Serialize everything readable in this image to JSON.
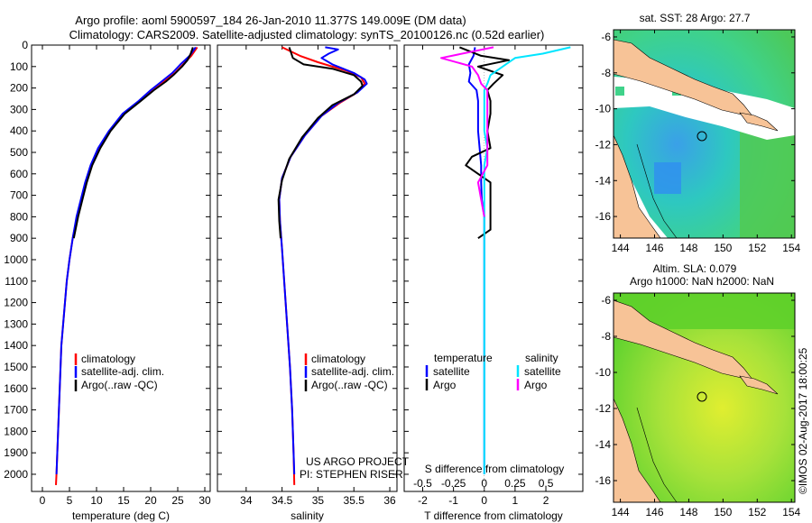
{
  "figure": {
    "title_line1": "Argo profile: aoml 5900597_184 26-Jan-2010 11.377S 149.009E (DM data)",
    "title_line2": "Climatology: CARS2009. Satellite-adjusted climatology: synTS_20100126.nc (0.52d earlier)",
    "project_line1": "US ARGO PROJECT",
    "project_line2": "PI: STEPHEN RISER",
    "credit": "©IMOS 02-Aug-2017 18:00:25",
    "colors": {
      "climatology": "#ff0000",
      "satellite": "#0000ff",
      "argo": "#000000",
      "salinity_satellite": "#00e5ff",
      "salinity_argo": "#ff00ff",
      "land": "#f7c397",
      "sst_map_water": "#2ecf9a",
      "sla_map_water": "#6fdc2a"
    }
  },
  "chart_data": [
    {
      "id": "temperature",
      "type": "line",
      "xlabel": "temperature (deg C)",
      "ylabel": "",
      "xlim": [
        -2,
        31
      ],
      "ylim": [
        2080,
        0
      ],
      "xticks": [
        0,
        5,
        10,
        15,
        20,
        25,
        30
      ],
      "xtick_labels": [
        "0",
        "5",
        "10",
        "15",
        "20",
        "25",
        "30"
      ],
      "yticks": [
        0,
        100,
        200,
        300,
        400,
        500,
        600,
        700,
        800,
        900,
        1000,
        1100,
        1200,
        1300,
        1400,
        1500,
        1600,
        1700,
        1800,
        1900,
        2000
      ],
      "ytick_labels": [
        "0",
        "100",
        "200",
        "300",
        "400",
        "500",
        "600",
        "700",
        "800",
        "900",
        "1000",
        "1100",
        "1200",
        "1300",
        "1400",
        "1500",
        "1600",
        "1700",
        "1800",
        "1900",
        "2000"
      ],
      "legend": [
        "climatology",
        "satellite-adj. clim.",
        "Argo(..raw -QC)"
      ],
      "series": [
        {
          "name": "climatology",
          "color": "#ff0000",
          "points": [
            [
              28.6,
              10
            ],
            [
              27.5,
              50
            ],
            [
              26,
              90
            ],
            [
              24.5,
              130
            ],
            [
              22.5,
              170
            ],
            [
              20.5,
              210
            ],
            [
              18,
              260
            ],
            [
              15,
              320
            ],
            [
              12.5,
              400
            ],
            [
              10.5,
              480
            ],
            [
              9,
              560
            ],
            [
              8,
              640
            ],
            [
              7.2,
              720
            ],
            [
              6.4,
              800
            ],
            [
              5.6,
              900
            ],
            [
              5,
              1000
            ],
            [
              4.5,
              1100
            ],
            [
              4,
              1250
            ],
            [
              3.5,
              1400
            ],
            [
              3.2,
              1600
            ],
            [
              2.9,
              1800
            ],
            [
              2.6,
              2000
            ],
            [
              2.5,
              2050
            ]
          ]
        },
        {
          "name": "satellite-adj. clim.",
          "color": "#0000ff",
          "points": [
            [
              28.3,
              10
            ],
            [
              27.2,
              50
            ],
            [
              25.5,
              90
            ],
            [
              24,
              130
            ],
            [
              22,
              170
            ],
            [
              20,
              210
            ],
            [
              17.8,
              260
            ],
            [
              14.8,
              320
            ],
            [
              12.3,
              400
            ],
            [
              10.3,
              480
            ],
            [
              8.9,
              560
            ],
            [
              7.9,
              640
            ],
            [
              7.1,
              720
            ],
            [
              6.3,
              800
            ],
            [
              5.6,
              900
            ],
            [
              5,
              1000
            ],
            [
              4.5,
              1100
            ],
            [
              4,
              1250
            ],
            [
              3.5,
              1400
            ],
            [
              3.2,
              1600
            ],
            [
              2.9,
              1800
            ],
            [
              2.6,
              2000
            ]
          ]
        },
        {
          "name": "Argo(..raw -QC)",
          "color": "#000000",
          "points": [
            [
              27.8,
              10
            ],
            [
              27.4,
              40
            ],
            [
              26.8,
              70
            ],
            [
              25.8,
              100
            ],
            [
              24.2,
              140
            ],
            [
              22.8,
              170
            ],
            [
              20.6,
              210
            ],
            [
              18.2,
              260
            ],
            [
              15.2,
              320
            ],
            [
              12.6,
              400
            ],
            [
              10.7,
              480
            ],
            [
              9.2,
              560
            ],
            [
              8.2,
              640
            ],
            [
              7.4,
              720
            ],
            [
              6.6,
              800
            ],
            [
              5.8,
              900
            ]
          ]
        }
      ]
    },
    {
      "id": "salinity",
      "type": "line",
      "xlabel": "salinity",
      "ylabel": "",
      "xlim": [
        33.6,
        36.1
      ],
      "ylim": [
        2080,
        0
      ],
      "xticks": [
        34,
        34.5,
        35,
        35.5,
        36
      ],
      "xtick_labels": [
        "34",
        "34.5",
        "35",
        "35.5",
        "36"
      ],
      "legend": [
        "climatology",
        "satellite-adj. clim.",
        "Argo(..raw -QC)"
      ],
      "series": [
        {
          "name": "climatology",
          "color": "#ff0000",
          "points": [
            [
              34.5,
              10
            ],
            [
              34.75,
              50
            ],
            [
              35,
              80
            ],
            [
              35.4,
              120
            ],
            [
              35.6,
              150
            ],
            [
              35.65,
              180
            ],
            [
              35.55,
              220
            ],
            [
              35.3,
              270
            ],
            [
              35.05,
              330
            ],
            [
              34.82,
              420
            ],
            [
              34.62,
              520
            ],
            [
              34.5,
              620
            ],
            [
              34.46,
              720
            ],
            [
              34.47,
              820
            ],
            [
              34.5,
              950
            ],
            [
              34.53,
              1100
            ],
            [
              34.57,
              1300
            ],
            [
              34.61,
              1500
            ],
            [
              34.64,
              1700
            ],
            [
              34.66,
              1900
            ],
            [
              34.67,
              2050
            ]
          ]
        },
        {
          "name": "satellite-adj. clim.",
          "color": "#0000ff",
          "points": [
            [
              35.1,
              10
            ],
            [
              35.28,
              20
            ],
            [
              35.15,
              40
            ],
            [
              35.05,
              60
            ],
            [
              35.2,
              90
            ],
            [
              35.5,
              130
            ],
            [
              35.65,
              160
            ],
            [
              35.68,
              180
            ],
            [
              35.55,
              220
            ],
            [
              35.28,
              270
            ],
            [
              35.05,
              330
            ],
            [
              34.82,
              420
            ],
            [
              34.62,
              520
            ],
            [
              34.5,
              620
            ],
            [
              34.46,
              720
            ],
            [
              34.47,
              820
            ],
            [
              34.5,
              950
            ],
            [
              34.53,
              1100
            ],
            [
              34.57,
              1300
            ],
            [
              34.61,
              1500
            ],
            [
              34.64,
              1700
            ],
            [
              34.66,
              1900
            ],
            [
              34.67,
              2000
            ]
          ]
        },
        {
          "name": "Argo(..raw -QC)",
          "color": "#000000",
          "points": [
            [
              34.6,
              10
            ],
            [
              34.65,
              60
            ],
            [
              34.8,
              90
            ],
            [
              35.2,
              110
            ],
            [
              35.5,
              140
            ],
            [
              35.6,
              170
            ],
            [
              35.62,
              190
            ],
            [
              35.5,
              230
            ],
            [
              35.2,
              280
            ],
            [
              35,
              340
            ],
            [
              34.78,
              430
            ],
            [
              34.6,
              530
            ],
            [
              34.5,
              630
            ],
            [
              34.45,
              720
            ],
            [
              34.46,
              820
            ],
            [
              34.48,
              900
            ]
          ]
        }
      ]
    },
    {
      "id": "differences",
      "type": "line",
      "xlabel": "T difference from climatology",
      "xlabel_top": "S difference from climatology",
      "xlim": [
        -2.6,
        3.2
      ],
      "ylim": [
        2080,
        0
      ],
      "xticks": [
        -2,
        -1,
        0,
        1,
        2
      ],
      "xtick_labels": [
        "-2",
        "-1",
        "0",
        "1",
        "2"
      ],
      "sticks": [
        -0.5,
        -0.25,
        0,
        0.25,
        0.5
      ],
      "stick_labels": [
        "-0.5",
        "-0.25",
        "0",
        "0.25",
        "0.5"
      ],
      "s_scale": 4,
      "legend_temperature_title": "temperature",
      "legend_salinity_title": "salinity",
      "legend_satellite": "satellite",
      "legend_argo": "Argo",
      "series": [
        {
          "name": "T satellite",
          "color": "#0000ff",
          "points": [
            [
              -0.3,
              10
            ],
            [
              -0.35,
              50
            ],
            [
              -0.5,
              90
            ],
            [
              -0.45,
              130
            ],
            [
              -0.5,
              170
            ],
            [
              -0.25,
              210
            ],
            [
              -0.2,
              260
            ],
            [
              -0.2,
              320
            ],
            [
              -0.2,
              400
            ],
            [
              -0.15,
              480
            ],
            [
              -0.1,
              560
            ],
            [
              -0.1,
              640
            ],
            [
              -0.08,
              720
            ],
            [
              0,
              800
            ],
            [
              0,
              900
            ],
            [
              0,
              1000
            ],
            [
              0,
              1200
            ],
            [
              0,
              1400
            ],
            [
              0,
              1600
            ],
            [
              0,
              1800
            ],
            [
              0,
              2000
            ]
          ]
        },
        {
          "name": "T Argo",
          "color": "#000000",
          "points": [
            [
              -0.8,
              10
            ],
            [
              -0.1,
              50
            ],
            [
              0.8,
              70
            ],
            [
              -0.2,
              100
            ],
            [
              0.6,
              140
            ],
            [
              0.3,
              180
            ],
            [
              0.1,
              210
            ],
            [
              0.2,
              260
            ],
            [
              0.2,
              320
            ],
            [
              0.1,
              400
            ],
            [
              0.2,
              480
            ],
            [
              -0.4,
              520
            ],
            [
              -0.6,
              560
            ],
            [
              0.2,
              640
            ],
            [
              0.2,
              720
            ],
            [
              0.2,
              800
            ],
            [
              0.2,
              860
            ],
            [
              -0.2,
              900
            ]
          ]
        },
        {
          "name": "S satellite",
          "color": "#00e5ff",
          "points": [
            [
              2.8,
              10
            ],
            [
              1.9,
              40
            ],
            [
              1,
              60
            ],
            [
              0.6,
              100
            ],
            [
              0.2,
              140
            ],
            [
              0.1,
              180
            ],
            [
              0,
              210
            ],
            [
              0,
              260
            ],
            [
              0,
              320
            ],
            [
              0,
              400
            ],
            [
              0.1,
              480
            ],
            [
              0,
              560
            ],
            [
              0,
              640
            ],
            [
              0,
              720
            ],
            [
              0,
              800
            ],
            [
              0,
              900
            ],
            [
              0,
              1000
            ],
            [
              0,
              1200
            ],
            [
              0,
              1400
            ],
            [
              0,
              1600
            ],
            [
              0,
              1800
            ],
            [
              0,
              2000
            ]
          ]
        },
        {
          "name": "S Argo",
          "color": "#ff00ff",
          "points": [
            [
              0.3,
              10
            ],
            [
              -1.4,
              60
            ],
            [
              -0.4,
              100
            ],
            [
              -0.2,
              140
            ],
            [
              -0.1,
              180
            ],
            [
              0.1,
              210
            ],
            [
              0.1,
              260
            ],
            [
              0.1,
              320
            ],
            [
              0.1,
              400
            ],
            [
              0.1,
              480
            ],
            [
              0.1,
              560
            ],
            [
              -0.2,
              640
            ],
            [
              -0.1,
              720
            ],
            [
              0,
              800
            ]
          ]
        }
      ]
    },
    {
      "id": "sst_map",
      "type": "heatmap",
      "title": "sat. SST: 28 Argo: 27.7",
      "xlim": [
        143.6,
        154.2
      ],
      "ylim": [
        -17.2,
        -5.6
      ],
      "xticks": [
        144,
        146,
        148,
        150,
        152,
        154
      ],
      "xtick_labels": [
        "144",
        "146",
        "148",
        "150",
        "152",
        "154"
      ],
      "yticks": [
        -6,
        -8,
        -10,
        -12,
        -14,
        -16
      ],
      "ytick_labels": [
        "-6",
        "-8",
        "-10",
        "-12",
        "-14",
        "-16"
      ],
      "marker": [
        149.009,
        -11.377
      ]
    },
    {
      "id": "sla_map",
      "type": "heatmap",
      "title_line1": "Altim. SLA: 0.079",
      "title_line2": "Argo h1000: NaN h2000: NaN",
      "xlim": [
        143.6,
        154.2
      ],
      "ylim": [
        -17.2,
        -5.6
      ],
      "xticks": [
        144,
        146,
        148,
        150,
        152,
        154
      ],
      "xtick_labels": [
        "144",
        "146",
        "148",
        "150",
        "152",
        "154"
      ],
      "yticks": [
        -6,
        -8,
        -10,
        -12,
        -14,
        -16
      ],
      "ytick_labels": [
        "-6",
        "-8",
        "-10",
        "-12",
        "-14",
        "-16"
      ],
      "marker": [
        149.009,
        -11.377
      ]
    }
  ]
}
